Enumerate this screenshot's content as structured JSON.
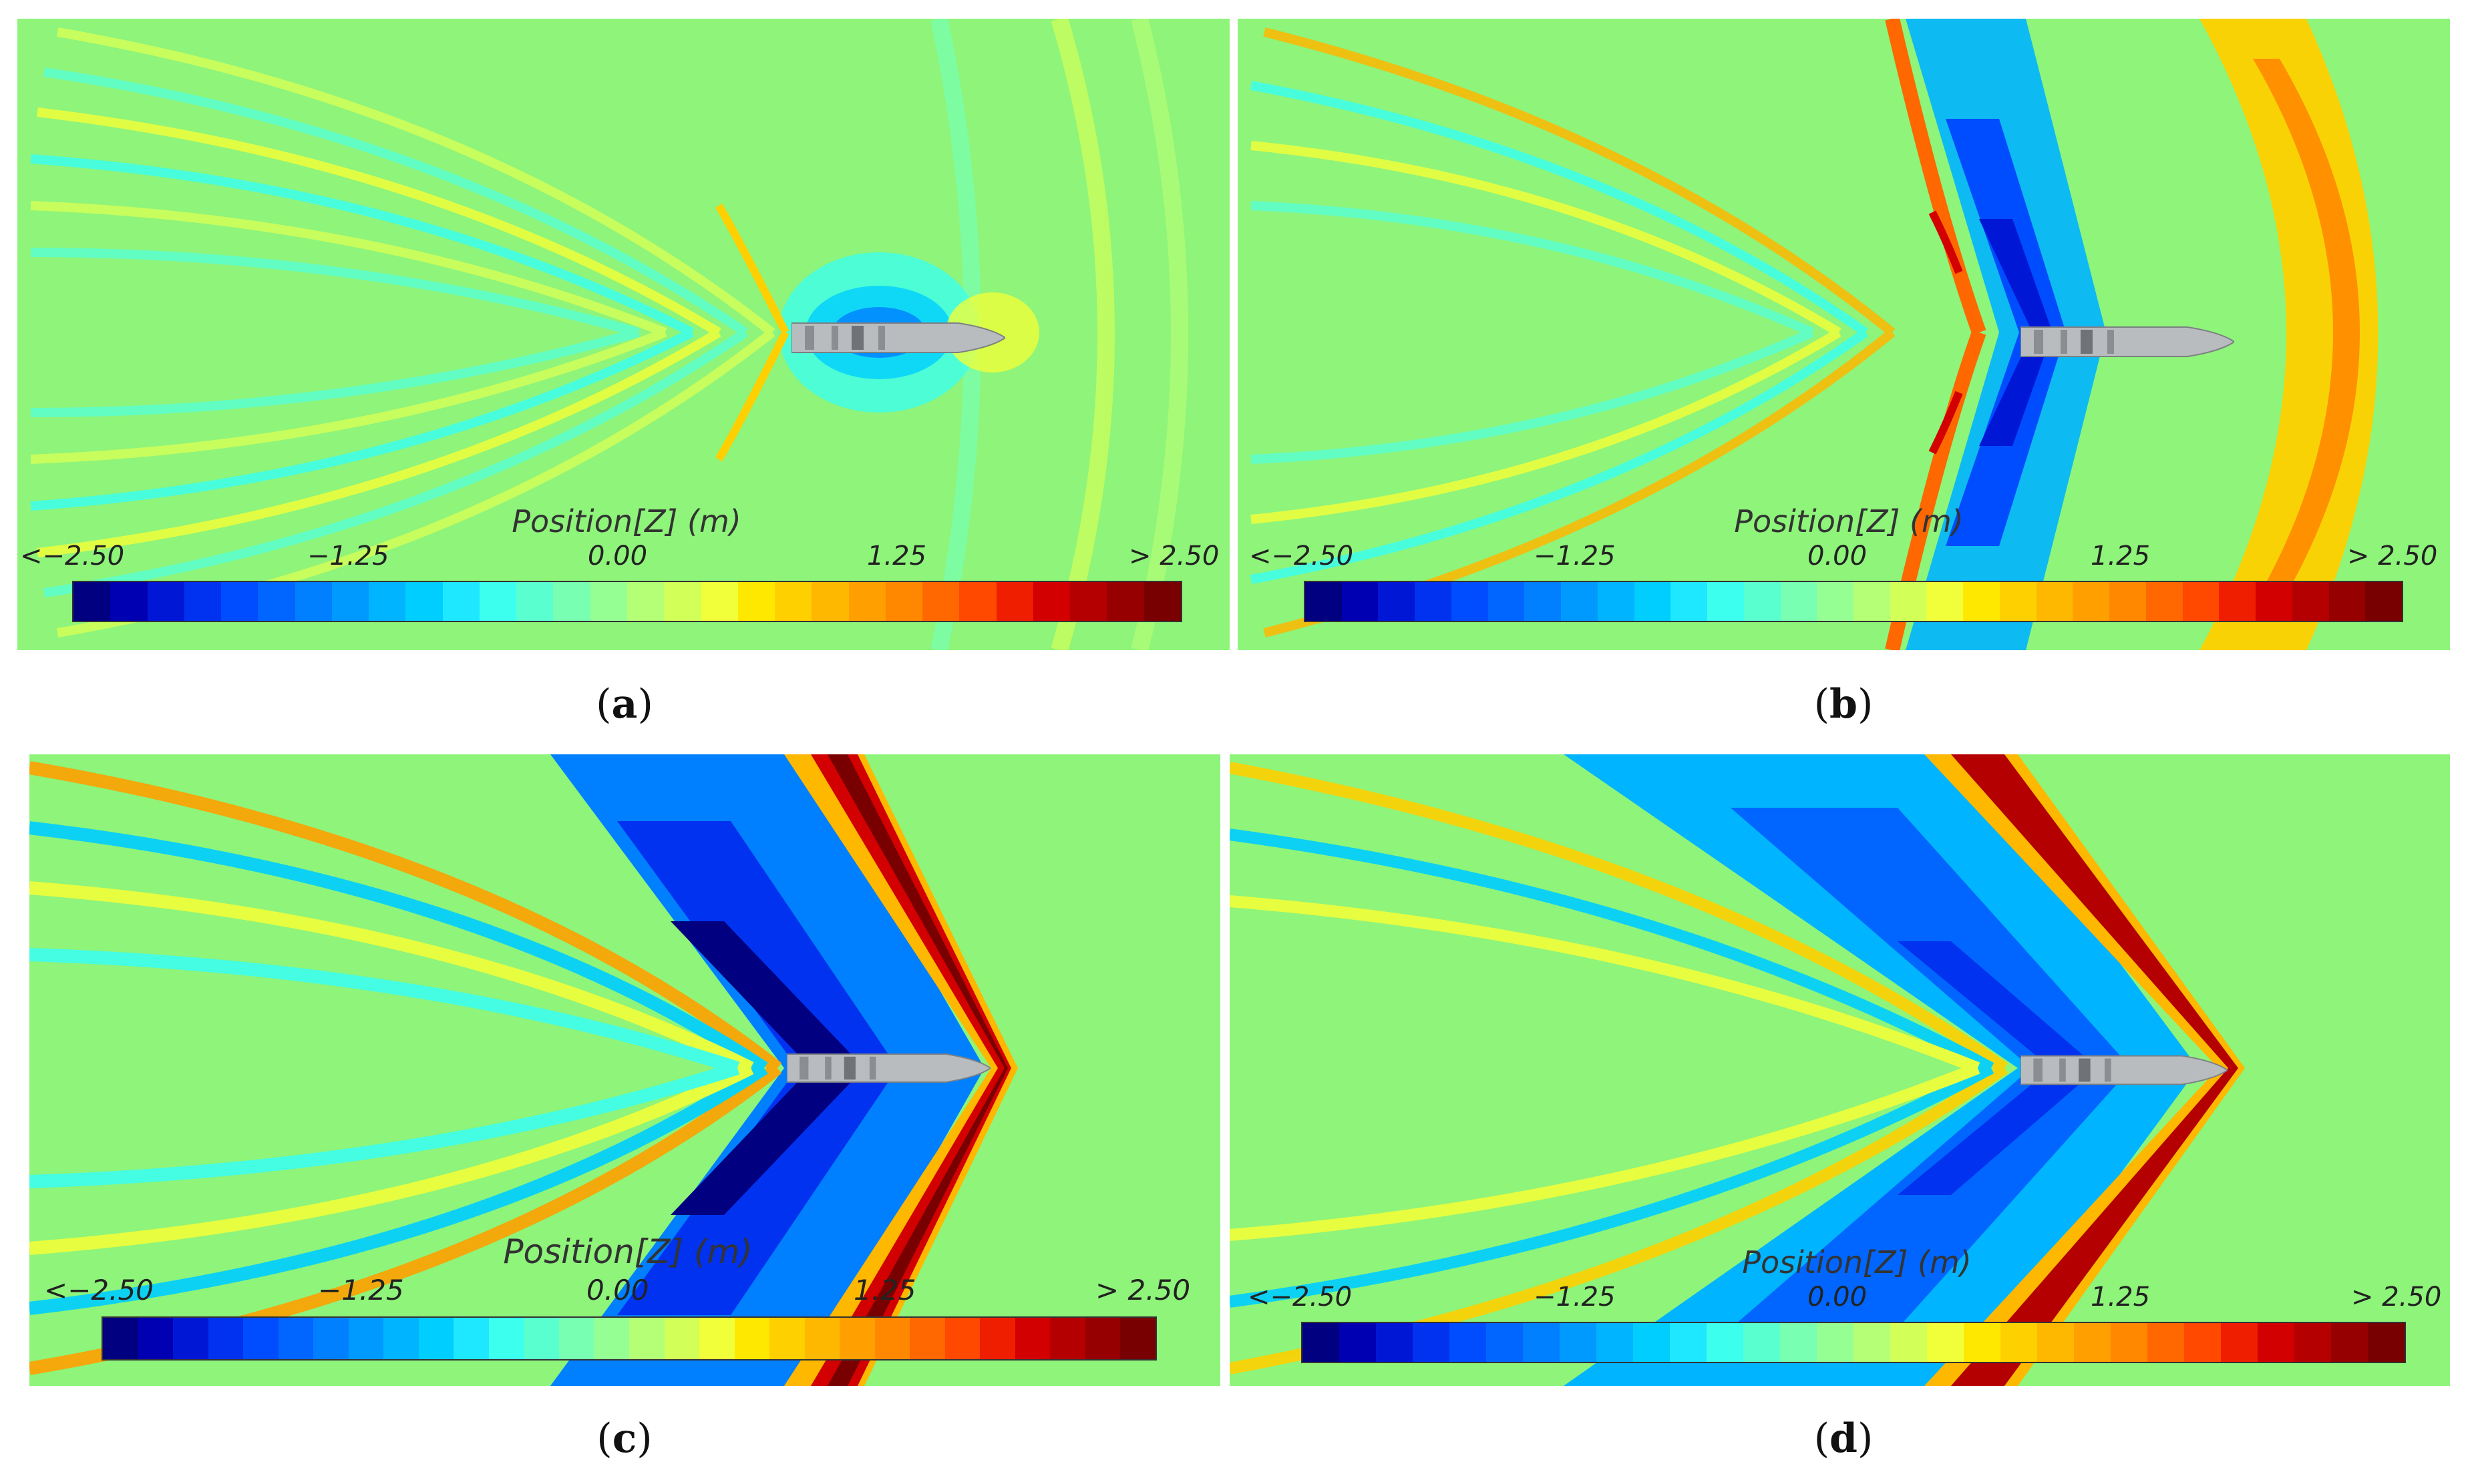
{
  "colorbar": {
    "title": "Position[Z] (m)",
    "ticks": [
      "<−2.50",
      "−1.25",
      "0.00",
      "1.25",
      "> 2.50"
    ],
    "min": -2.5,
    "max": 2.5,
    "colors": [
      "#000080",
      "#0000b2",
      "#0018d6",
      "#0032f0",
      "#004cff",
      "#0066ff",
      "#0080ff",
      "#009aff",
      "#00b4ff",
      "#00ceff",
      "#1ee8ff",
      "#3cffee",
      "#5affd0",
      "#78ffb2",
      "#96ff94",
      "#b4ff76",
      "#d2ff58",
      "#f0ff3a",
      "#ffe800",
      "#ffd000",
      "#ffb800",
      "#ffa000",
      "#ff8800",
      "#ff6800",
      "#ff4800",
      "#f01e00",
      "#d20000",
      "#b40000",
      "#960000",
      "#780000"
    ]
  },
  "ship_color": "#b9bcbf",
  "background_color": "#8ef47a",
  "panels": [
    {
      "id": "a",
      "caption": "a"
    },
    {
      "id": "b",
      "caption": "b"
    },
    {
      "id": "c",
      "caption": "c"
    },
    {
      "id": "d",
      "caption": "d"
    }
  ]
}
